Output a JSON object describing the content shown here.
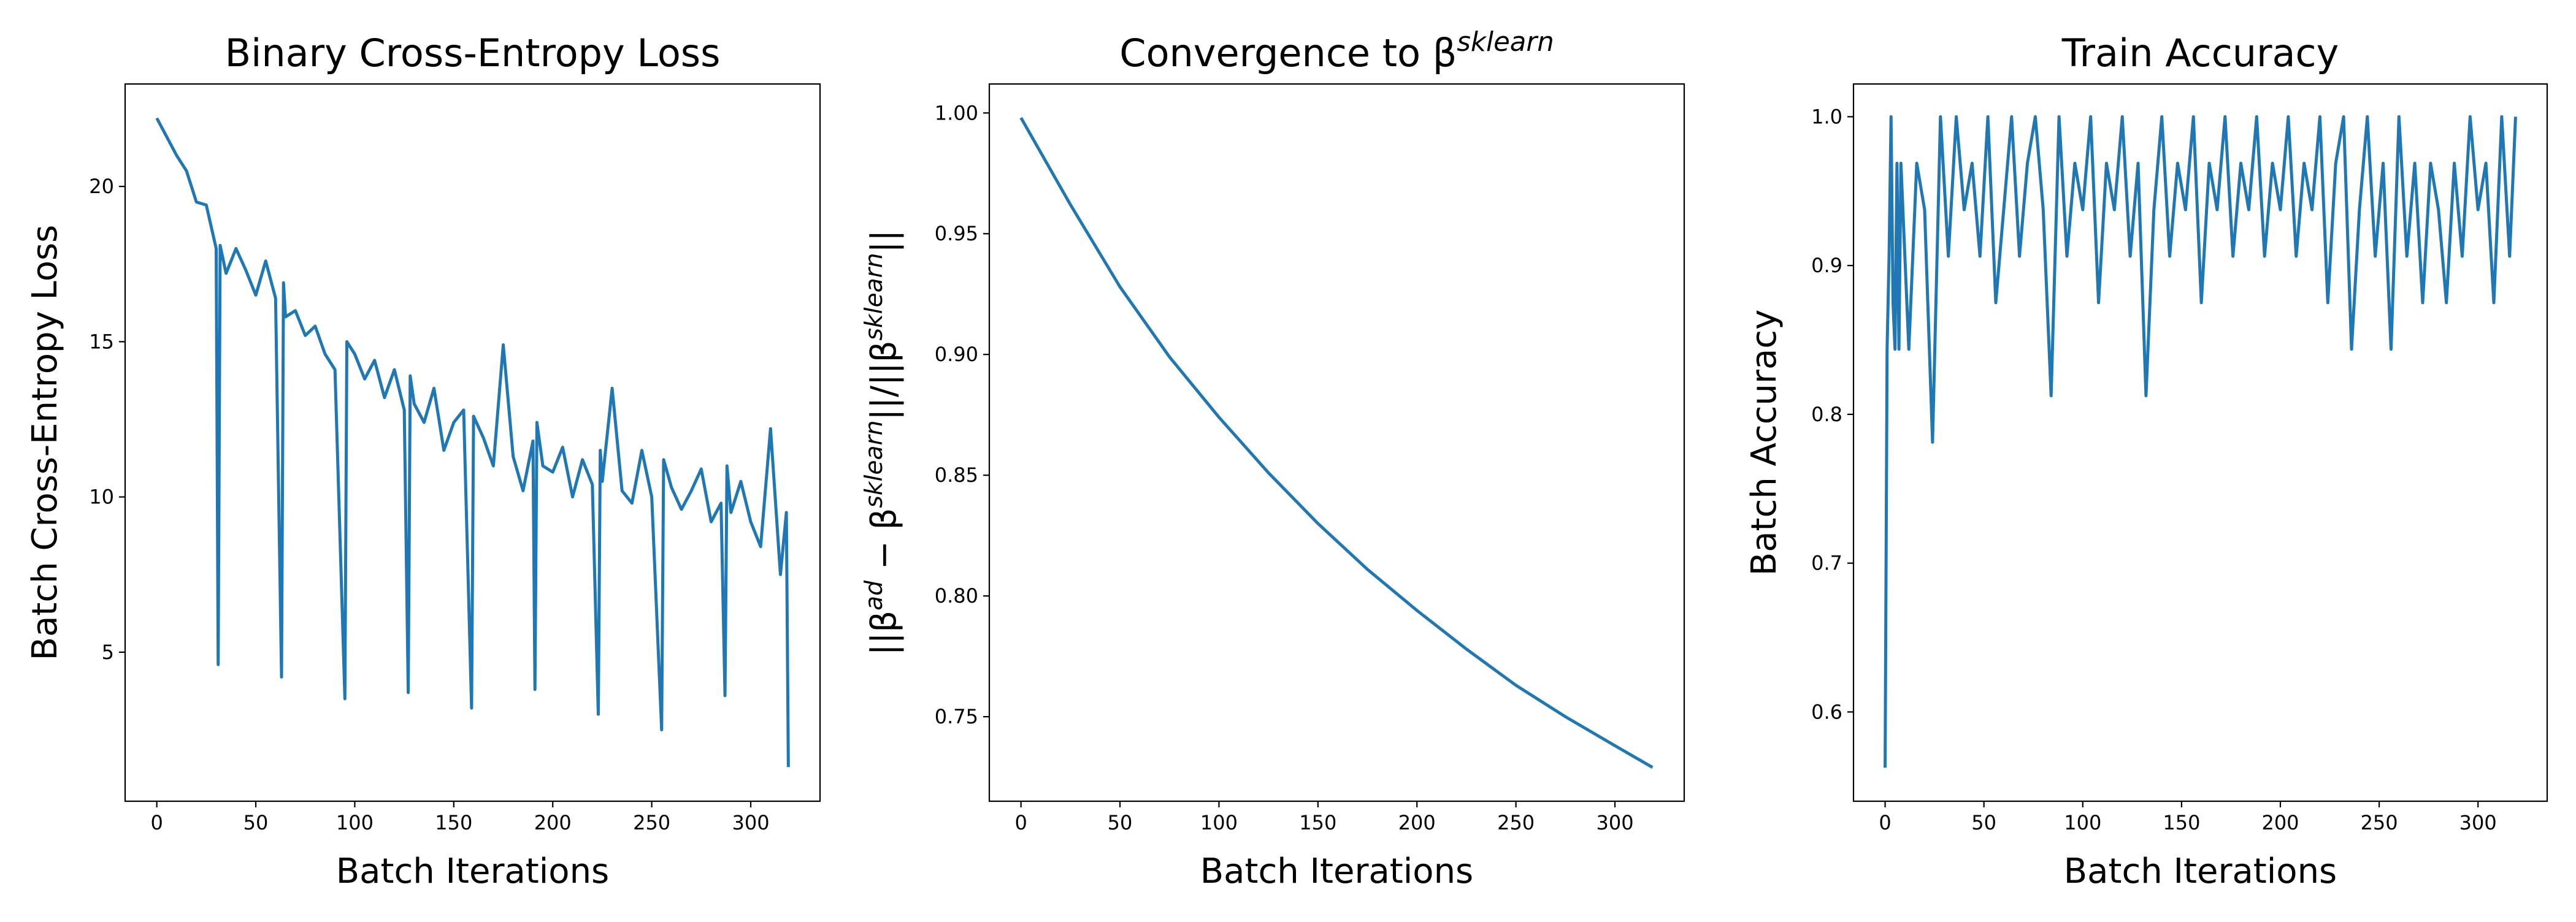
{
  "chart_data": [
    {
      "type": "line",
      "title": [
        {
          "text": "Binary Cross-Entropy Loss"
        }
      ],
      "xlabel": "Batch Iterations",
      "ylabel": [
        {
          "text": "Batch Cross-Entropy Loss"
        }
      ],
      "color": "#1f77b4",
      "x": [
        0,
        5,
        10,
        15,
        20,
        25,
        30,
        31,
        32,
        35,
        40,
        45,
        50,
        55,
        60,
        63,
        64,
        65,
        70,
        75,
        80,
        85,
        90,
        95,
        96,
        100,
        105,
        110,
        115,
        120,
        125,
        127,
        128,
        130,
        135,
        140,
        145,
        150,
        155,
        159,
        160,
        165,
        170,
        175,
        180,
        185,
        190,
        191,
        192,
        195,
        200,
        205,
        210,
        215,
        220,
        223,
        224,
        225,
        230,
        235,
        240,
        245,
        250,
        255,
        256,
        260,
        265,
        270,
        275,
        280,
        285,
        287,
        288,
        290,
        295,
        300,
        305,
        310,
        315,
        318,
        319
      ],
      "values": [
        22.2,
        21.6,
        21.0,
        20.5,
        19.5,
        19.4,
        18.0,
        4.6,
        18.1,
        17.2,
        18.0,
        17.3,
        16.5,
        17.6,
        16.4,
        4.2,
        16.9,
        15.8,
        16.0,
        15.2,
        15.5,
        14.6,
        14.1,
        3.5,
        15.0,
        14.6,
        13.8,
        14.4,
        13.2,
        14.1,
        12.8,
        3.7,
        13.9,
        13.0,
        12.4,
        13.5,
        11.5,
        12.4,
        12.8,
        3.2,
        12.6,
        11.9,
        11.0,
        14.9,
        11.3,
        10.2,
        11.8,
        3.8,
        12.4,
        11.0,
        10.8,
        11.6,
        10.0,
        11.2,
        10.4,
        3.0,
        11.5,
        10.5,
        13.5,
        10.2,
        9.8,
        11.5,
        10.0,
        2.5,
        11.2,
        10.3,
        9.6,
        10.2,
        10.9,
        9.2,
        9.8,
        3.6,
        11.0,
        9.5,
        10.5,
        9.2,
        8.4,
        12.2,
        7.5,
        9.5,
        1.3
      ],
      "xlim": [
        -16,
        335
      ],
      "xticks": [
        0,
        50,
        100,
        150,
        200,
        250,
        300
      ],
      "ylim": [
        0.2,
        23.3
      ],
      "yticks": [
        5,
        10,
        15,
        20
      ]
    },
    {
      "type": "line",
      "title": [
        {
          "text": "Convergence to β"
        },
        {
          "sup": "sklearn"
        }
      ],
      "xlabel": "Batch Iterations",
      "ylabel": [
        {
          "text": "||β"
        },
        {
          "sup": "ad"
        },
        {
          "text": " − β"
        },
        {
          "sup": "sklearn"
        },
        {
          "text": "||/||β"
        },
        {
          "sup": "sklearn"
        },
        {
          "text": "||"
        }
      ],
      "color": "#1f77b4",
      "x": [
        0,
        25,
        50,
        75,
        100,
        125,
        150,
        175,
        200,
        225,
        250,
        275,
        300,
        319
      ],
      "values": [
        0.998,
        0.962,
        0.928,
        0.899,
        0.874,
        0.851,
        0.83,
        0.811,
        0.794,
        0.778,
        0.763,
        0.75,
        0.738,
        0.729
      ],
      "xlim": [
        -16,
        335
      ],
      "xticks": [
        0,
        50,
        100,
        150,
        200,
        250,
        300
      ],
      "ylim": [
        0.715,
        1.012
      ],
      "yticks": [
        {
          "value": 0.75,
          "label": "0.75"
        },
        {
          "value": 0.8,
          "label": "0.80"
        },
        {
          "value": 0.85,
          "label": "0.85"
        },
        {
          "value": 0.9,
          "label": "0.90"
        },
        {
          "value": 0.95,
          "label": "0.95"
        },
        {
          "value": 1.0,
          "label": "1.00"
        }
      ]
    },
    {
      "type": "line",
      "title": [
        {
          "text": "Train Accuracy"
        }
      ],
      "xlabel": "Batch Iterations",
      "ylabel": [
        {
          "text": "Batch Accuracy"
        }
      ],
      "color": "#1f77b4",
      "x": [
        0,
        1,
        2,
        3,
        4,
        5,
        6,
        7,
        8,
        12,
        16,
        20,
        24,
        28,
        32,
        36,
        40,
        44,
        48,
        52,
        56,
        60,
        64,
        68,
        72,
        76,
        80,
        84,
        88,
        92,
        96,
        100,
        104,
        108,
        112,
        116,
        120,
        124,
        128,
        132,
        136,
        140,
        144,
        148,
        152,
        156,
        160,
        164,
        168,
        172,
        176,
        180,
        184,
        188,
        192,
        196,
        200,
        204,
        208,
        212,
        216,
        220,
        224,
        228,
        232,
        236,
        240,
        244,
        248,
        252,
        256,
        260,
        264,
        268,
        272,
        276,
        280,
        284,
        288,
        292,
        296,
        300,
        304,
        308,
        312,
        316,
        319
      ],
      "values": [
        0.5625,
        0.84375,
        0.90625,
        1.0,
        0.875,
        0.84375,
        0.96875,
        0.84375,
        0.96875,
        0.84375,
        0.96875,
        0.9375,
        0.78125,
        1.0,
        0.90625,
        1.0,
        0.9375,
        0.96875,
        0.90625,
        1.0,
        0.875,
        0.9375,
        1.0,
        0.90625,
        0.96875,
        1.0,
        0.9375,
        0.8125,
        1.0,
        0.90625,
        0.96875,
        0.9375,
        1.0,
        0.875,
        0.96875,
        0.9375,
        1.0,
        0.90625,
        0.96875,
        0.8125,
        0.9375,
        1.0,
        0.90625,
        0.96875,
        0.9375,
        1.0,
        0.875,
        0.96875,
        0.9375,
        1.0,
        0.90625,
        0.96875,
        0.9375,
        1.0,
        0.90625,
        0.96875,
        0.9375,
        1.0,
        0.90625,
        0.96875,
        0.9375,
        1.0,
        0.875,
        0.96875,
        1.0,
        0.84375,
        0.9375,
        1.0,
        0.90625,
        0.96875,
        0.84375,
        1.0,
        0.90625,
        0.96875,
        0.875,
        0.96875,
        0.9375,
        0.875,
        0.96875,
        0.90625,
        1.0,
        0.9375,
        0.96875,
        0.875,
        1.0,
        0.90625,
        1.0
      ],
      "xlim": [
        -16,
        335
      ],
      "xticks": [
        0,
        50,
        100,
        150,
        200,
        250,
        300
      ],
      "ylim": [
        0.54,
        1.022
      ],
      "yticks": [
        0.6,
        0.7,
        0.8,
        0.9,
        {
          "value": 1.0,
          "label": "1.0"
        }
      ]
    }
  ]
}
